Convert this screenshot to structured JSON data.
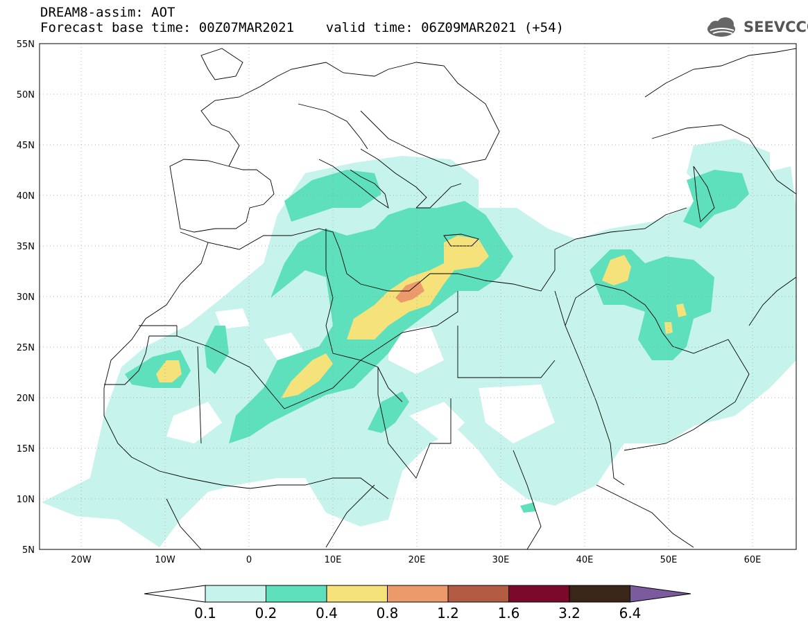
{
  "header": {
    "line1": "DREAM8-assim: AOT",
    "line2": "Forecast base time: 00Z07MAR2021    valid time: 06Z09MAR2021 (+54)"
  },
  "logo": {
    "text": "SEEVCCC",
    "icon": "cloud-logo-icon"
  },
  "map": {
    "lon_range": [
      -25,
      65
    ],
    "lat_range": [
      5,
      55
    ],
    "lat_labels": [
      "55N",
      "50N",
      "45N",
      "40N",
      "35N",
      "30N",
      "25N",
      "20N",
      "15N",
      "10N",
      "5N"
    ],
    "lon_labels": [
      "20W",
      "10W",
      "0",
      "10E",
      "20E",
      "30E",
      "40E",
      "50E",
      "60E"
    ]
  },
  "legend": {
    "labels": [
      "0.1",
      "0.2",
      "0.4",
      "0.8",
      "1.2",
      "1.6",
      "3.2",
      "6.4"
    ],
    "colors": [
      "#ffffff",
      "#c6f3ec",
      "#5ee0bc",
      "#f5e27a",
      "#ed9a6a",
      "#b35a43",
      "#7b0a2a",
      "#3a2619",
      "#7c5a9e"
    ]
  }
}
